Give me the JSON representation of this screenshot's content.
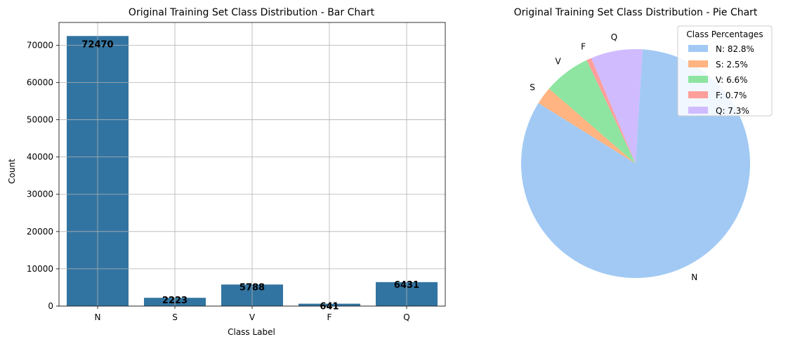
{
  "chart_data": [
    {
      "type": "bar",
      "title": "Original Training Set Class Distribution - Bar Chart",
      "xlabel": "Class Label",
      "ylabel": "Count",
      "categories": [
        "N",
        "S",
        "V",
        "F",
        "Q"
      ],
      "values": [
        72470,
        2223,
        5788,
        641,
        6431
      ],
      "data_labels": [
        "72470",
        "2223",
        "5788",
        "641",
        "6431"
      ],
      "ylim": [
        0,
        76100
      ],
      "yticks": [
        0,
        10000,
        20000,
        30000,
        40000,
        50000,
        60000,
        70000
      ],
      "ytick_labels": [
        "0",
        "10000",
        "20000",
        "30000",
        "40000",
        "50000",
        "60000",
        "70000"
      ],
      "grid": true,
      "color": "#3274a1"
    },
    {
      "type": "pie",
      "title": "Original Training Set Class Distribution - Pie Chart",
      "labels": [
        "N",
        "S",
        "V",
        "F",
        "Q"
      ],
      "values": [
        82.8,
        2.5,
        6.6,
        0.7,
        7.3
      ],
      "colors": [
        "#a1c9f4",
        "#ffb482",
        "#8de5a1",
        "#ff9f9b",
        "#d0bbff"
      ],
      "legend_title": "Class Percentages",
      "legend_entries": [
        "N: 82.8%",
        "S: 2.5%",
        "V: 6.6%",
        "F: 0.7%",
        "Q: 7.3%"
      ],
      "legend_position": "upper-right"
    }
  ]
}
